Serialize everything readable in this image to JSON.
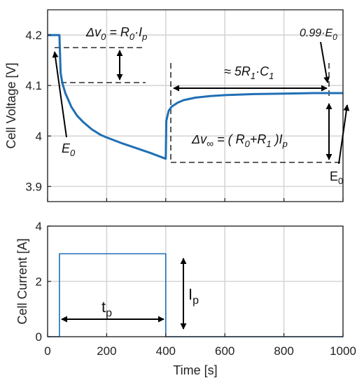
{
  "chart_data": [
    {
      "type": "line",
      "ylabel": "Cell Voltage [V]",
      "xlim": [
        0,
        1000
      ],
      "ylim": [
        3.87,
        4.25
      ],
      "yticks": [
        3.9,
        4.0,
        4.1,
        4.2
      ],
      "grid": true,
      "series": [
        {
          "color": "#1f6fb4",
          "x": [
            0,
            40,
            44,
            50,
            60,
            80,
            100,
            120,
            150,
            180,
            200,
            250,
            300,
            350,
            399,
            400,
            402,
            410,
            420,
            440,
            460,
            500,
            550,
            600,
            700,
            800,
            900,
            1000
          ],
          "y": [
            4.2,
            4.2,
            4.125,
            4.105,
            4.085,
            4.058,
            4.04,
            4.028,
            4.013,
            4.002,
            3.997,
            3.986,
            3.976,
            3.966,
            3.955,
            3.955,
            4.03,
            4.05,
            4.058,
            4.066,
            4.071,
            4.076,
            4.079,
            4.081,
            4.083,
            4.084,
            4.085,
            4.085
          ]
        }
      ],
      "annotations": {
        "dv0_lhs": "Δv",
        "dv0_sub": "0",
        "dv0_eq": " = R",
        "dv0_r0sub": "0",
        "dv0_dot": "·I",
        "dv0_psub": "p",
        "tau_pre": "≈ 5R",
        "tau_r1sub": "1",
        "tau_dot": "·C",
        "tau_c1sub": "1",
        "e99_pre": "0.99·E",
        "e99_sub": "0",
        "e0_left": "E",
        "e0_left_sub": "0",
        "e0_right": "E",
        "e0_right_sub": "0",
        "dvinf_lhs": "Δv",
        "dvinf_sub": "∞",
        "dvinf_eq": " = ( R",
        "dvinf_r0sub": "0",
        "dvinf_plus": "+R",
        "dvinf_r1sub": "1",
        "dvinf_close": " )I",
        "dvinf_psub": "p"
      }
    },
    {
      "type": "line",
      "xlabel": "Time [s]",
      "ylabel": "Cell Current [A]",
      "xlim": [
        0,
        1000
      ],
      "ylim": [
        0,
        4
      ],
      "xticks": [
        0,
        200,
        400,
        600,
        800,
        1000
      ],
      "yticks": [
        0,
        2,
        4
      ],
      "grid": true,
      "series": [
        {
          "color": "#1f6fb4",
          "x": [
            0,
            40,
            40,
            400,
            400,
            1000
          ],
          "y": [
            0,
            0,
            3,
            3,
            0,
            0
          ]
        }
      ],
      "annotations": {
        "tp": "t",
        "tp_sub": "p",
        "ip": "I",
        "ip_sub": "p"
      }
    }
  ]
}
